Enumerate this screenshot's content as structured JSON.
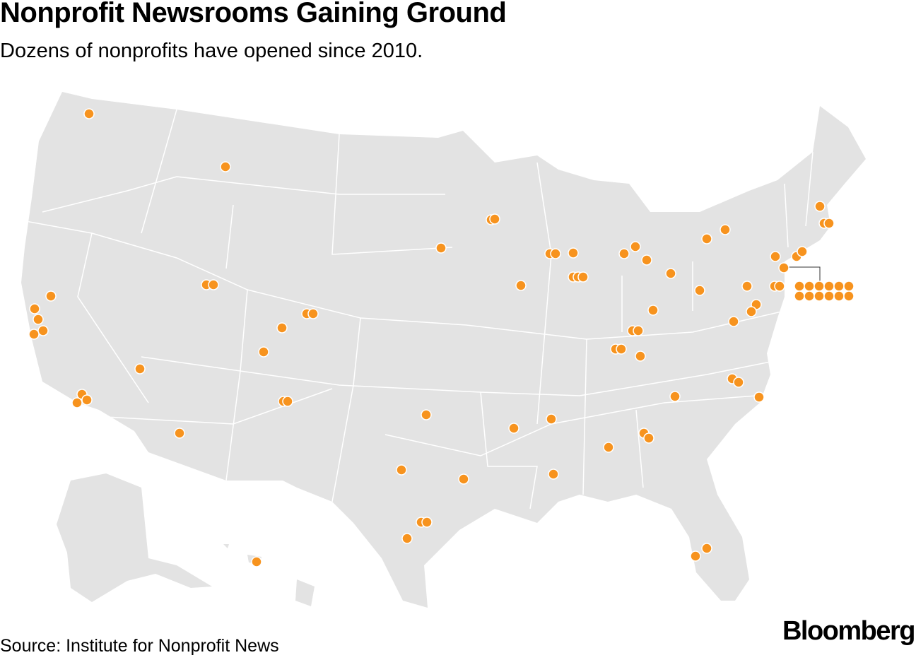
{
  "header": {
    "title": "Nonprofit Newsrooms Gaining Ground",
    "subtitle": "Dozens of nonprofits have opened since 2010."
  },
  "footer": {
    "source": "Source: Institute for Nonprofit News",
    "logo": "Bloomberg"
  }
}
